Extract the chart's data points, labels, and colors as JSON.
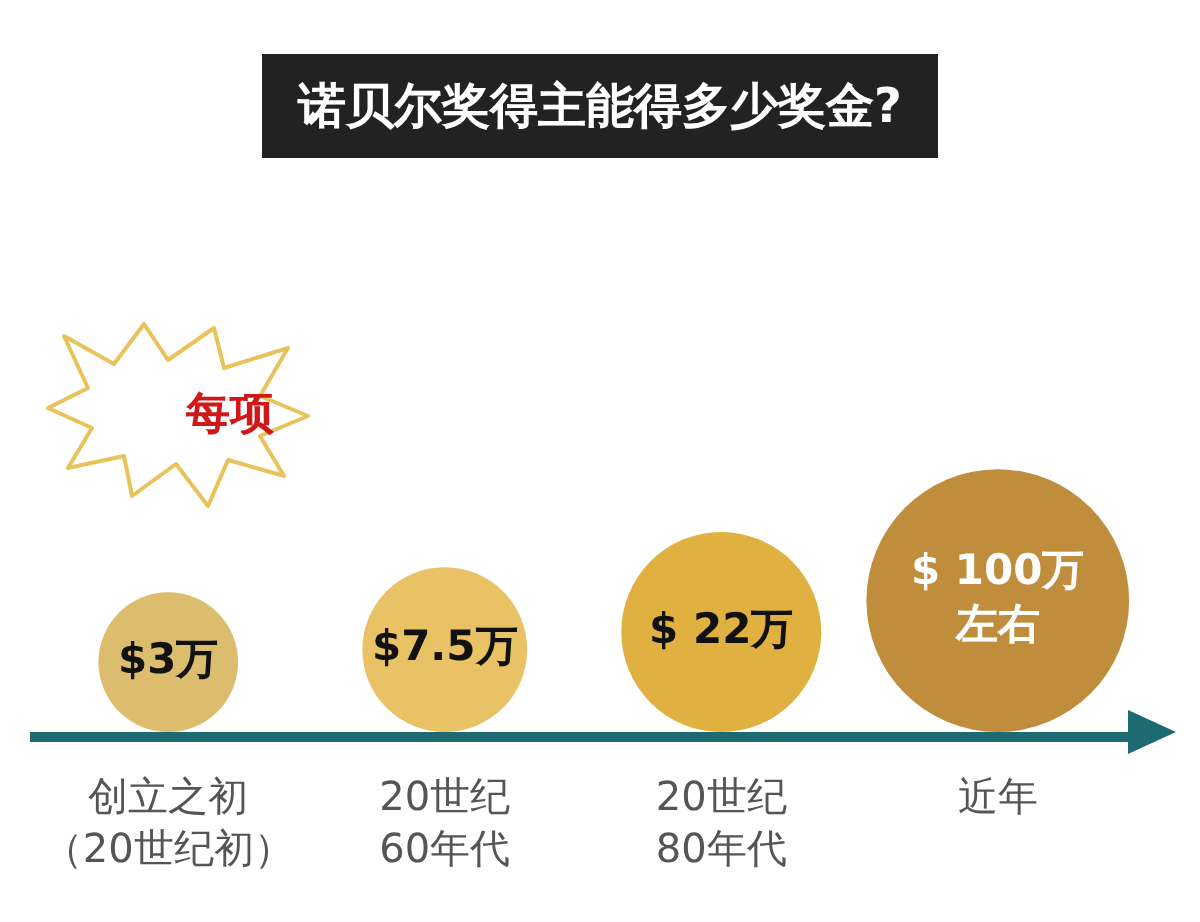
{
  "chart_data": {
    "type": "other",
    "title": "诺贝尔奖得主能得多少奖金?",
    "annotations": [
      "每项"
    ],
    "categories": [
      "创立之初（20世纪初）",
      "20世纪60年代",
      "20世纪80年代",
      "近年"
    ],
    "values": [
      3,
      7.5,
      22,
      100
    ],
    "colors": [
      "#dcbd6e",
      "#e8c264",
      "#e0b040",
      "#c08d3c"
    ],
    "value_labels": [
      "$3万",
      "$7.5万",
      "$ 22万",
      "$ 100万左右"
    ]
  }
}
